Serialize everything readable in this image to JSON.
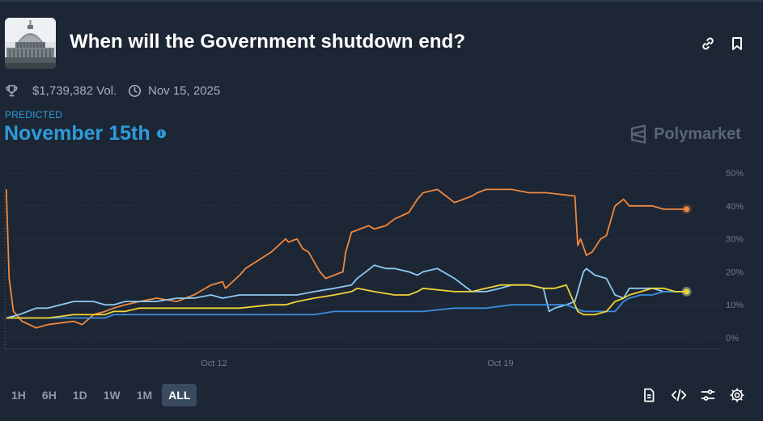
{
  "market": {
    "title": "When will the Government shutdown end?",
    "image_icon": "capitol-building-image",
    "volume": "$1,739,382 Vol.",
    "end_date": "Nov 15, 2025"
  },
  "header_actions": {
    "link_icon": "link-icon",
    "bookmark_icon": "bookmark-icon"
  },
  "prediction": {
    "label": "PREDICTED",
    "outcome": "November 15th",
    "info": "i"
  },
  "brand": {
    "name": "Polymarket"
  },
  "time_ranges": {
    "options": [
      "1H",
      "6H",
      "1D",
      "1W",
      "1M",
      "ALL"
    ],
    "selected": "ALL"
  },
  "toolbar": {
    "icons": [
      "document-icon",
      "embed-code-icon",
      "sliders-icon",
      "settings-gear-icon"
    ]
  },
  "colors": {
    "background": "#1d2634",
    "accent": "#2d9cdb",
    "series_orange": "#f0883e",
    "series_light_blue": "#8ec9f2",
    "series_blue": "#3a8fe0",
    "series_yellow": "#f2d435"
  },
  "chart_data": {
    "type": "line",
    "y_axis_position": "right",
    "y_unit": "%",
    "ylim": [
      0,
      50
    ],
    "y_ticks": [
      0,
      10,
      20,
      30,
      40,
      50
    ],
    "y_tick_labels": [
      "0%",
      "10%",
      "20%",
      "30%",
      "40%",
      "50%"
    ],
    "x_ticks": [
      11.3,
      21.3
    ],
    "x_tick_labels": [
      "Oct 12",
      "Oct 19"
    ],
    "xlim": [
      4,
      28.8
    ],
    "grid": "horizontal dashed",
    "legend": "none",
    "series": [
      {
        "color": "#f0883e",
        "x": [
          4.05,
          4.15,
          4.3,
          4.6,
          5.1,
          5.5,
          6.4,
          6.7,
          7.1,
          7.5,
          7.8,
          8.2,
          8.7,
          9.3,
          10.0,
          10.6,
          11.2,
          11.6,
          11.7,
          12.2,
          12.4,
          13.3,
          13.8,
          13.9,
          14.2,
          14.4,
          14.6,
          15.0,
          15.2,
          15.5,
          15.8,
          15.9,
          16.1,
          16.7,
          16.9,
          17.3,
          17.6,
          18.1,
          18.4,
          18.6,
          19.1,
          19.7,
          20.3,
          20.5,
          20.8,
          21.0,
          21.3,
          21.7,
          22.3,
          22.6,
          22.9,
          23.9,
          24.0,
          24.1,
          24.3,
          24.5,
          24.8,
          25.0,
          25.3,
          25.6,
          25.8,
          26.2,
          26.6,
          27.0,
          27.4,
          27.8
        ],
        "values": [
          45,
          18,
          8,
          5,
          3,
          4,
          5,
          4,
          7,
          8,
          9,
          10,
          11,
          12,
          11,
          13,
          16,
          17,
          15,
          19,
          21,
          26,
          30,
          29,
          30,
          27,
          26,
          20,
          18,
          19,
          20,
          26,
          32,
          34,
          33,
          34,
          36,
          38,
          42,
          44,
          45,
          41,
          43,
          44,
          45,
          45,
          45,
          45,
          44,
          44,
          44,
          43,
          28,
          30,
          25,
          26,
          30,
          31,
          40,
          42,
          40,
          40,
          40,
          39,
          39,
          39
        ]
      },
      {
        "color": "#8ec9f2",
        "x": [
          4.05,
          4.5,
          5.1,
          5.5,
          6.4,
          6.7,
          7.1,
          7.5,
          7.8,
          8.2,
          8.7,
          9.3,
          10.0,
          10.6,
          11.2,
          11.6,
          12.2,
          13.3,
          14.2,
          14.8,
          15.5,
          16.1,
          16.3,
          16.6,
          16.9,
          17.3,
          17.6,
          18.1,
          18.4,
          18.6,
          19.1,
          19.7,
          20.3,
          20.8,
          21.3,
          21.7,
          22.3,
          22.8,
          23.0,
          23.2,
          23.6,
          23.9,
          24.2,
          24.3,
          24.6,
          25.0,
          25.3,
          25.6,
          25.8,
          26.2,
          26.6,
          27.0,
          27.4,
          27.8
        ],
        "values": [
          6,
          7,
          9,
          9,
          11,
          11,
          11,
          10,
          10,
          11,
          11,
          11,
          12,
          12,
          13,
          12,
          13,
          13,
          13,
          14,
          15,
          16,
          18,
          20,
          22,
          21,
          21,
          20,
          19,
          20,
          21,
          18,
          14,
          14,
          15,
          16,
          16,
          15,
          8,
          9,
          10,
          11,
          20,
          21,
          19,
          18,
          13,
          12,
          15,
          15,
          15,
          14,
          14,
          14
        ]
      },
      {
        "color": "#3a8fe0",
        "x": [
          4.05,
          4.5,
          5.1,
          5.5,
          6.4,
          6.7,
          7.1,
          7.5,
          7.8,
          8.2,
          8.7,
          9.3,
          10.0,
          10.6,
          11.2,
          11.6,
          12.2,
          13.3,
          13.8,
          14.2,
          14.8,
          15.5,
          16.1,
          16.6,
          17.3,
          18.1,
          18.6,
          19.7,
          20.3,
          20.8,
          21.7,
          22.3,
          22.8,
          23.2,
          23.6,
          23.9,
          24.2,
          24.6,
          25.0,
          25.3,
          25.6,
          25.8,
          26.2,
          26.6,
          27.0,
          27.4,
          27.8
        ],
        "values": [
          6,
          6,
          6,
          6,
          6,
          6,
          6,
          6,
          7,
          7,
          7,
          7,
          7,
          7,
          7,
          7,
          7,
          7,
          7,
          7,
          7,
          8,
          8,
          8,
          8,
          8,
          8,
          9,
          9,
          9,
          10,
          10,
          10,
          10,
          10,
          9,
          8,
          8,
          8,
          8,
          11,
          12,
          13,
          13,
          14,
          14,
          14
        ]
      },
      {
        "color": "#f2d435",
        "x": [
          4.05,
          4.5,
          5.1,
          5.5,
          6.4,
          6.7,
          7.1,
          7.5,
          7.8,
          8.2,
          8.7,
          9.3,
          10.0,
          10.6,
          11.2,
          11.6,
          12.2,
          13.3,
          13.8,
          14.2,
          14.8,
          15.5,
          16.1,
          16.3,
          16.9,
          17.6,
          18.1,
          18.4,
          18.6,
          19.7,
          20.3,
          20.8,
          21.3,
          21.7,
          22.3,
          22.8,
          23.2,
          23.6,
          24.0,
          24.2,
          24.6,
          25.0,
          25.3,
          25.6,
          25.8,
          26.2,
          26.6,
          27.0,
          27.4,
          27.8
        ],
        "values": [
          6,
          6,
          6,
          6,
          7,
          7,
          7,
          7,
          8,
          8,
          9,
          9,
          9,
          9,
          9,
          9,
          9,
          10,
          10,
          11,
          12,
          13,
          14,
          15,
          14,
          13,
          13,
          14,
          15,
          14,
          14,
          15,
          16,
          16,
          16,
          15,
          15,
          16,
          8,
          7,
          7,
          8,
          11,
          12,
          13,
          14,
          15,
          15,
          14,
          14
        ]
      }
    ]
  }
}
